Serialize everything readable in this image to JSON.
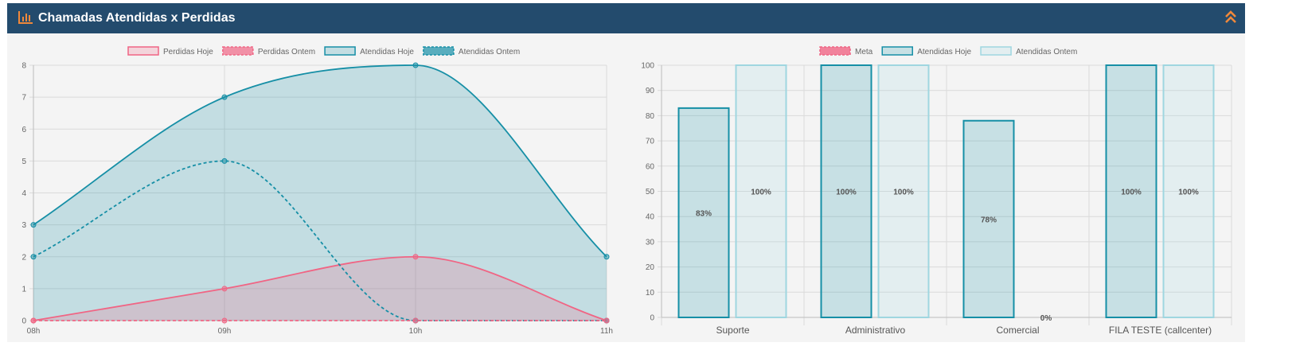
{
  "panel": {
    "title": "Chamadas Atendidas x Perdidas",
    "icon": "bar-chart-icon",
    "collapse_icon": "double-chevron-up-icon"
  },
  "colors": {
    "header_bg": "#234b6d",
    "accent_orange": "#f0883a",
    "teal": "#168fa6",
    "pink": "#f06584",
    "panel_bg": "#f4f4f4"
  },
  "chart_data": [
    {
      "type": "line",
      "categories": [
        "08h",
        "09h",
        "10h",
        "11h"
      ],
      "ylim": [
        0,
        8
      ],
      "yticks": [
        0,
        1,
        2,
        3,
        4,
        5,
        6,
        7,
        8
      ],
      "legend_position": "top",
      "grid": true,
      "series": [
        {
          "name": "Perdidas Hoje",
          "values": [
            0,
            1,
            2,
            0
          ],
          "color": "#f06584",
          "style": "solid-filled"
        },
        {
          "name": "Perdidas Ontem",
          "values": [
            0,
            0,
            0,
            0
          ],
          "color": "#f06584",
          "style": "dashed"
        },
        {
          "name": "Atendidas Hoje",
          "values": [
            3,
            7,
            8,
            2
          ],
          "color": "#168fa6",
          "style": "solid-filled"
        },
        {
          "name": "Atendidas Ontem",
          "values": [
            2,
            5,
            0,
            0
          ],
          "color": "#168fa6",
          "style": "dashed"
        }
      ]
    },
    {
      "type": "bar",
      "categories": [
        "Suporte",
        "Administrativo",
        "Comercial",
        "FILA TESTE (callcenter)"
      ],
      "ylim": [
        0,
        100
      ],
      "yticks": [
        0,
        10,
        20,
        30,
        40,
        50,
        60,
        70,
        80,
        90,
        100
      ],
      "legend_position": "top",
      "grid": true,
      "legend": [
        "Meta",
        "Atendidas Hoje",
        "Atendidas Ontem"
      ],
      "series": [
        {
          "name": "Atendidas Hoje",
          "values": [
            83,
            100,
            78,
            100
          ],
          "labels": [
            "83%",
            "100%",
            "78%",
            "100%"
          ],
          "color": "#168fa6"
        },
        {
          "name": "Atendidas Ontem",
          "values": [
            100,
            100,
            0,
            100
          ],
          "labels": [
            "100%",
            "100%",
            "0%",
            "100%"
          ],
          "color": "#9fd6e0"
        }
      ],
      "meta_color": "#f06584"
    }
  ]
}
